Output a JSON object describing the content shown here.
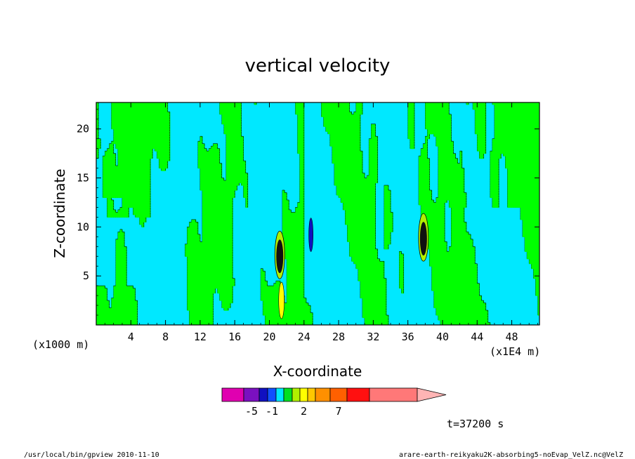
{
  "chart_data": {
    "type": "heatmap",
    "title": "vertical velocity",
    "xlabel": "X-coordinate",
    "ylabel": "Z-coordinate",
    "x_unit_label": "(x1E4 m)",
    "y_unit_label": "(x1000 m)",
    "x_ticks": [
      4,
      8,
      12,
      16,
      20,
      24,
      28,
      32,
      36,
      40,
      44,
      48
    ],
    "y_ticks": [
      5,
      10,
      15,
      20
    ],
    "xlim": [
      0,
      51.2
    ],
    "ylim": [
      0,
      22.7
    ],
    "time_label": "t=37200 s",
    "colorbar": {
      "colors": [
        "#e000b0",
        "#7a10c0",
        "#1010c0",
        "#1050ff",
        "#00e8ff",
        "#00e020",
        "#b0f000",
        "#ffff00",
        "#ffc800",
        "#ff9000",
        "#ff6000",
        "#ff1010",
        "#ff7878",
        "#ffb4b4"
      ],
      "labels": [
        "-5",
        "-1",
        "2",
        "7"
      ],
      "label_bins": [
        1,
        3.5,
        7,
        10
      ]
    },
    "features": [
      {
        "x": 21.2,
        "z": 7.0,
        "kind": "dark-updraft-core"
      },
      {
        "x": 37.8,
        "z": 8.8,
        "kind": "dark-updraft-core"
      },
      {
        "x": 24.8,
        "z": 9.2,
        "kind": "blue-downdraft"
      },
      {
        "x": 21.4,
        "z": 2.5,
        "kind": "yellow-band"
      }
    ]
  },
  "footer": {
    "left": "/usr/local/bin/gpview  2010-11-10",
    "right": "arare-earth-reikyaku2K-absorbing5-noEvap_VelZ.nc@VelZ"
  },
  "colors": {
    "positive_fill": "#00ff00",
    "negative_fill": "#00e8ff",
    "contour": "#000000"
  }
}
